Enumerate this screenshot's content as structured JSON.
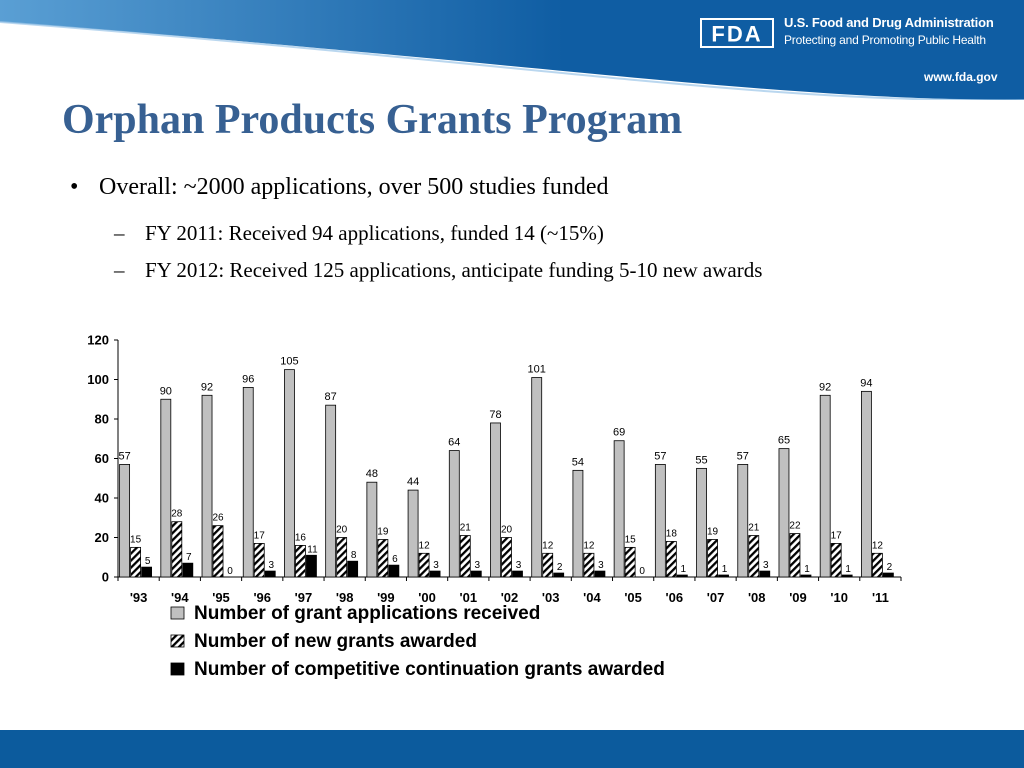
{
  "header": {
    "agency": "U.S. Food and Drug Administration",
    "tagline": "Protecting and Promoting Public Health",
    "url": "www.fda.gov",
    "logo_text": "FDA",
    "banner_color": "#0f5da3",
    "banner_light": "#5a9fd4"
  },
  "slide": {
    "title": "Orphan Products Grants Program",
    "title_color": "#376092",
    "bullet": {
      "marker": "•",
      "text": "Overall: ~2000 applications, over 500 studies funded"
    },
    "sub_bullets": [
      {
        "marker": "–",
        "text": "FY 2011: Received 94 applications, funded 14 (~15%)"
      },
      {
        "marker": "–",
        "text": "FY 2012: Received 125 applications, anticipate funding 5-10 new awards"
      }
    ]
  },
  "footer": {
    "color": "#0c5b9d"
  },
  "chart_data": {
    "type": "bar",
    "categories": [
      "'93",
      "'94",
      "'95",
      "'96",
      "'97",
      "'98",
      "'99",
      "'00",
      "'01",
      "'02",
      "'03",
      "'04",
      "'05",
      "'06",
      "'07",
      "'08",
      "'09",
      "'10",
      "'11"
    ],
    "series": [
      {
        "name": "Number of grant applications received",
        "style": "gray",
        "color": "#c0c0c0",
        "values": [
          57,
          90,
          92,
          96,
          105,
          87,
          48,
          44,
          64,
          78,
          101,
          54,
          69,
          57,
          55,
          57,
          65,
          92,
          94
        ]
      },
      {
        "name": "Number of new grants awarded",
        "style": "hatched",
        "color": "#000000",
        "values": [
          15,
          28,
          26,
          17,
          16,
          20,
          19,
          12,
          21,
          20,
          12,
          12,
          15,
          18,
          19,
          21,
          22,
          17,
          12
        ]
      },
      {
        "name": "Number of competitive continuation grants awarded",
        "style": "black",
        "color": "#000000",
        "values": [
          5,
          7,
          0,
          3,
          11,
          8,
          6,
          3,
          3,
          3,
          2,
          3,
          0,
          1,
          1,
          3,
          1,
          1,
          2
        ]
      }
    ],
    "ylim": [
      0,
      120
    ],
    "yticks": [
      0,
      20,
      40,
      60,
      80,
      100,
      120
    ],
    "grid": false,
    "legend_position": "bottom"
  }
}
